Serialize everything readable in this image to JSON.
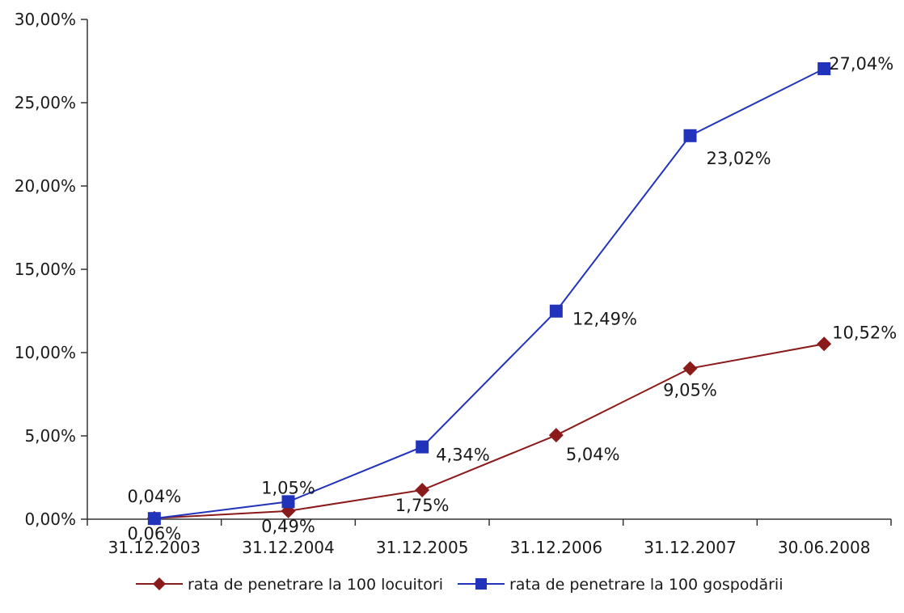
{
  "chart_data": {
    "type": "line",
    "title": "",
    "xlabel": "",
    "ylabel": "",
    "categories": [
      "31.12.2003",
      "31.12.2004",
      "31.12.2005",
      "31.12.2006",
      "31.12.2007",
      "30.06.2008"
    ],
    "ylim": [
      0,
      30
    ],
    "y_ticks": [
      0,
      5,
      10,
      15,
      20,
      25,
      30
    ],
    "y_tick_labels": [
      "0,00%",
      "5,00%",
      "10,00%",
      "15,00%",
      "20,00%",
      "25,00%",
      "30,00%"
    ],
    "grid": false,
    "legend_position": "bottom",
    "series": [
      {
        "name": "rata de penetrare la 100 locuitori",
        "color": "#8B1A1A",
        "marker": "diamond",
        "values": [
          0.06,
          0.49,
          1.75,
          5.04,
          9.05,
          10.52
        ],
        "labels": [
          "0,06%",
          "0,49%",
          "1,75%",
          "5,04%",
          "9,05%",
          "10,52%"
        ]
      },
      {
        "name": "rata de penetrare la 100 gospodării",
        "color": "#2233BB",
        "marker": "square",
        "values": [
          0.04,
          1.05,
          4.34,
          12.49,
          23.02,
          27.04
        ],
        "labels": [
          "0,04%",
          "1,05%",
          "4,34%",
          "12,49%",
          "23,02%",
          "27,04%"
        ]
      }
    ]
  }
}
